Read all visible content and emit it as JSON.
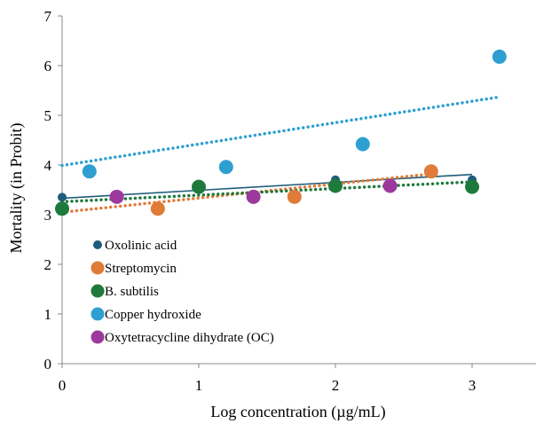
{
  "chart_data": {
    "type": "scatter",
    "title": "",
    "xlabel": "Log concentration (µg/mL)",
    "ylabel": "Mortality (in Probit)",
    "xlim": [
      0,
      3.45
    ],
    "ylim": [
      0,
      7
    ],
    "x_ticks": [
      "0",
      "1",
      "2",
      "3"
    ],
    "y_ticks": [
      "0",
      "1",
      "2",
      "3",
      "4",
      "5",
      "6",
      "7"
    ],
    "grid": false,
    "legend_position": "bottom-left",
    "series": [
      {
        "name": "Oxolinic acid",
        "color": "#1f5c7a",
        "marker": "small-circle",
        "points": [
          {
            "x": 0,
            "y": 3.35
          },
          {
            "x": 2,
            "y": 3.7
          },
          {
            "x": 3,
            "y": 3.7
          }
        ],
        "trendline": {
          "style": "solid",
          "x1": 0,
          "y1": 3.33,
          "x2": 3,
          "y2": 3.81
        }
      },
      {
        "name": "Streptomycin",
        "color": "#e07b39",
        "marker": "circle",
        "points": [
          {
            "x": 0.7,
            "y": 3.12
          },
          {
            "x": 1.7,
            "y": 3.36
          },
          {
            "x": 2.7,
            "y": 3.87
          }
        ],
        "trendline": {
          "style": "dotted",
          "x1": 0,
          "y1": 3.05,
          "x2": 2.7,
          "y2": 3.82
        }
      },
      {
        "name": "B. subtilis",
        "color": "#1e7a3c",
        "marker": "circle",
        "points": [
          {
            "x": 0,
            "y": 3.12
          },
          {
            "x": 1,
            "y": 3.56
          },
          {
            "x": 2,
            "y": 3.58
          },
          {
            "x": 3,
            "y": 3.56
          }
        ],
        "trendline": {
          "style": "dotted",
          "x1": 0,
          "y1": 3.26,
          "x2": 3,
          "y2": 3.66
        }
      },
      {
        "name": "Copper hydroxide",
        "color": "#2e9fd0",
        "marker": "circle",
        "points": [
          {
            "x": 0.2,
            "y": 3.87
          },
          {
            "x": 1.2,
            "y": 3.96
          },
          {
            "x": 2.2,
            "y": 4.42
          },
          {
            "x": 3.2,
            "y": 6.18
          }
        ],
        "trendline": {
          "style": "dotted",
          "x1": 0,
          "y1": 3.99,
          "x2": 3.2,
          "y2": 5.37
        }
      },
      {
        "name": "Oxytetracycline dihydrate (OC)",
        "color": "#9b3a9c",
        "marker": "circle",
        "points": [
          {
            "x": 0.4,
            "y": 3.36
          },
          {
            "x": 1.4,
            "y": 3.36
          },
          {
            "x": 2.4,
            "y": 3.58
          }
        ],
        "trendline": null
      }
    ]
  }
}
